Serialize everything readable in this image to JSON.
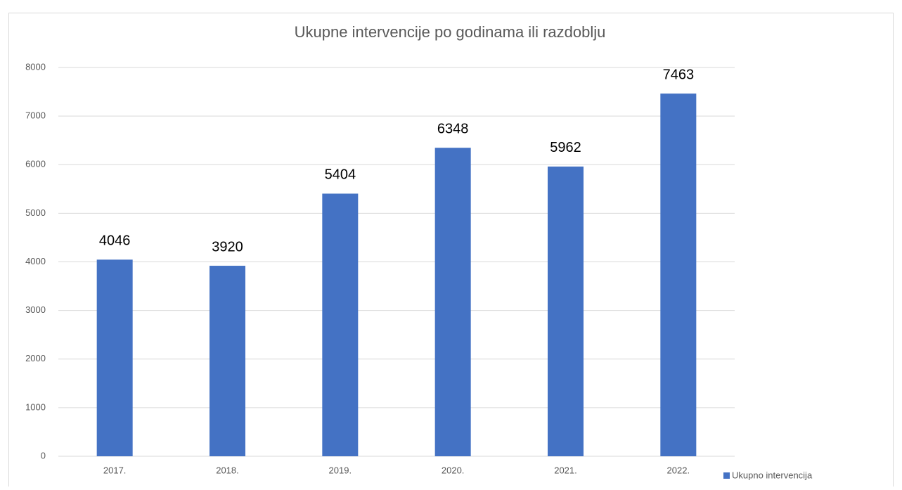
{
  "chart_data": {
    "type": "bar",
    "title": "Ukupne intervencije po godinama ili razdoblju",
    "categories": [
      "2017.",
      "2018.",
      "2019.",
      "2020.",
      "2021.",
      "2022."
    ],
    "series": [
      {
        "name": "Ukupno intervencija",
        "color": "#4472c4",
        "values": [
          4046,
          3920,
          5404,
          6348,
          5962,
          7463
        ]
      }
    ],
    "ylim": [
      0,
      8000
    ],
    "yticks": [
      0,
      1000,
      2000,
      3000,
      4000,
      5000,
      6000,
      7000,
      8000
    ],
    "grid": true,
    "legend": "bottom-right"
  }
}
